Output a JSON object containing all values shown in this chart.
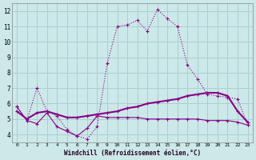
{
  "xlabel": "Windchill (Refroidissement éolien,°C)",
  "background_color": "#cce8e8",
  "grid_color": "#aacfcf",
  "line_color": "#880088",
  "xlim": [
    -0.5,
    23.5
  ],
  "ylim": [
    3.5,
    12.5
  ],
  "xticks": [
    0,
    1,
    2,
    3,
    4,
    5,
    6,
    7,
    8,
    9,
    10,
    11,
    12,
    13,
    14,
    15,
    16,
    17,
    18,
    19,
    20,
    21,
    22,
    23
  ],
  "yticks": [
    4,
    5,
    6,
    7,
    8,
    9,
    10,
    11,
    12
  ],
  "line1_x": [
    0,
    1,
    2,
    3,
    4,
    5,
    6,
    7,
    8,
    9,
    10,
    11,
    12,
    13,
    14,
    15,
    16,
    17,
    18,
    19,
    20,
    21,
    22,
    23
  ],
  "line1_y": [
    5.8,
    4.9,
    7.0,
    5.5,
    5.2,
    4.3,
    3.9,
    3.7,
    4.5,
    8.6,
    11.0,
    11.1,
    11.4,
    10.7,
    12.1,
    11.5,
    11.0,
    8.5,
    7.6,
    6.6,
    6.5,
    6.4,
    6.3,
    4.6
  ],
  "line2_x": [
    0,
    1,
    2,
    3,
    4,
    5,
    6,
    7,
    8,
    9,
    10,
    11,
    12,
    13,
    14,
    15,
    16,
    17,
    18,
    19,
    20,
    21,
    22,
    23
  ],
  "line2_y": [
    5.5,
    5.0,
    5.4,
    5.5,
    5.3,
    5.1,
    5.1,
    5.2,
    5.3,
    5.4,
    5.5,
    5.7,
    5.8,
    6.0,
    6.1,
    6.2,
    6.3,
    6.5,
    6.6,
    6.7,
    6.7,
    6.5,
    5.5,
    4.8
  ],
  "line3_x": [
    0,
    1,
    2,
    3,
    4,
    5,
    6,
    7,
    8,
    9,
    10,
    11,
    12,
    13,
    14,
    15,
    16,
    17,
    18,
    19,
    20,
    21,
    22,
    23
  ],
  "line3_y": [
    5.8,
    4.9,
    4.7,
    5.4,
    4.5,
    4.2,
    3.9,
    4.4,
    5.2,
    5.1,
    5.1,
    5.1,
    5.1,
    5.0,
    5.0,
    5.0,
    5.0,
    5.0,
    5.0,
    4.9,
    4.9,
    4.9,
    4.8,
    4.6
  ]
}
